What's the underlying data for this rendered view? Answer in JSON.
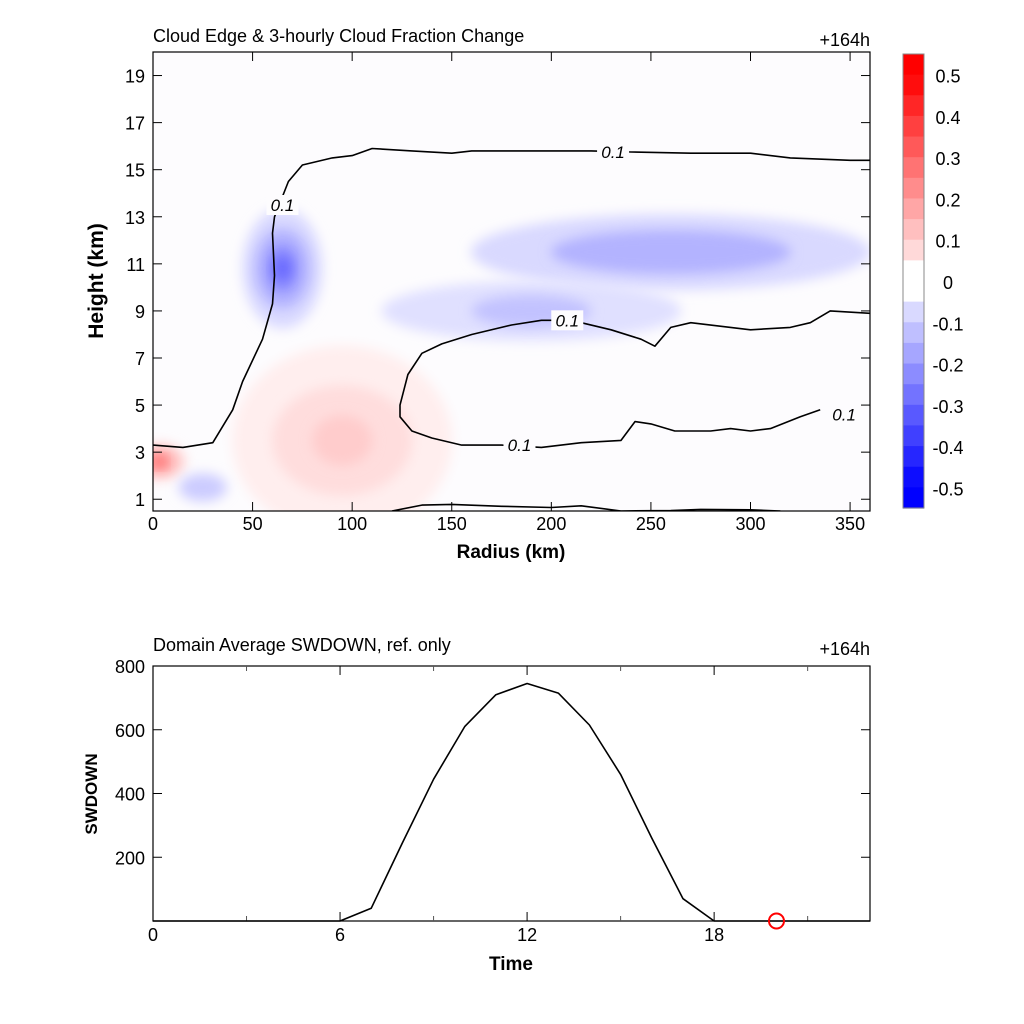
{
  "chart_data": [
    {
      "type": "heatmap",
      "title": "Cloud Edge & 3-hourly Cloud Fraction Change",
      "time_label": "+164h",
      "xlabel": "Radius (km)",
      "ylabel": "Height (km)",
      "xlim": [
        0,
        360
      ],
      "ylim": [
        0.5,
        20
      ],
      "x_ticks": [
        "0",
        "50",
        "100",
        "150",
        "200",
        "250",
        "300",
        "350"
      ],
      "x_tick_values": [
        0,
        50,
        100,
        150,
        200,
        250,
        300,
        350
      ],
      "y_ticks": [
        "1",
        "3",
        "5",
        "7",
        "9",
        "11",
        "13",
        "15",
        "17",
        "19"
      ],
      "y_tick_values": [
        1,
        3,
        5,
        7,
        9,
        11,
        13,
        15,
        17,
        19
      ],
      "colorbar": {
        "labels": [
          "0.5",
          "0.4",
          "0.3",
          "0.2",
          "0.1",
          "0",
          "-0.1",
          "-0.2",
          "-0.3",
          "-0.4",
          "-0.5"
        ],
        "levels": [
          0.5,
          0.4,
          0.3,
          0.2,
          0.1,
          0,
          -0.1,
          -0.2,
          -0.3,
          -0.4,
          -0.5
        ],
        "positive_color": "#ff0000",
        "negative_color": "#0000ff",
        "neutral_color": "#ffffff"
      },
      "shaded_features": [
        {
          "name": "negative-core-upper-left",
          "center": [
            65,
            10.8
          ],
          "peak": -0.3
        },
        {
          "name": "negative-band-upper-right",
          "center": [
            260,
            11.5
          ],
          "peak": -0.15
        },
        {
          "name": "negative-band-mid",
          "center": [
            190,
            9.0
          ],
          "peak": -0.12
        },
        {
          "name": "positive-lower-center",
          "center": [
            95,
            3.5
          ],
          "peak": 0.1
        },
        {
          "name": "positive-near-origin",
          "center": [
            3,
            2.6
          ],
          "peak": 0.3
        },
        {
          "name": "negative-small-lower-left",
          "center": [
            25,
            1.5
          ],
          "peak": -0.1
        }
      ],
      "contours": [
        {
          "level_label": "0.1",
          "points": [
            [
              0,
              3.3
            ],
            [
              15,
              3.2
            ],
            [
              30,
              3.4
            ],
            [
              40,
              4.8
            ],
            [
              45,
              6.0
            ],
            [
              55,
              7.8
            ],
            [
              60,
              9.3
            ],
            [
              61,
              10.5
            ],
            [
              60,
              12.3
            ],
            [
              61,
              13.0
            ],
            [
              68,
              14.5
            ],
            [
              75,
              15.2
            ],
            [
              90,
              15.5
            ],
            [
              100,
              15.6
            ],
            [
              110,
              15.9
            ],
            [
              130,
              15.8
            ],
            [
              150,
              15.7
            ],
            [
              160,
              15.8
            ],
            [
              200,
              15.8
            ],
            [
              220,
              15.8
            ],
            [
              240,
              15.75
            ],
            [
              270,
              15.7
            ],
            [
              300,
              15.7
            ],
            [
              320,
              15.5
            ],
            [
              350,
              15.4
            ],
            [
              360,
              15.4
            ]
          ],
          "label_positions": [
            [
              65,
              13.5
            ],
            [
              231,
              15.75
            ]
          ]
        },
        {
          "level_label": "0.1",
          "points": [
            [
              360,
              8.9
            ],
            [
              340,
              9.0
            ],
            [
              330,
              8.5
            ],
            [
              320,
              8.3
            ],
            [
              300,
              8.2
            ],
            [
              290,
              8.3
            ],
            [
              270,
              8.5
            ],
            [
              260,
              8.3
            ],
            [
              252,
              7.5
            ],
            [
              245,
              7.8
            ],
            [
              230,
              8.2
            ],
            [
              210,
              8.6
            ],
            [
              195,
              8.6
            ],
            [
              180,
              8.4
            ],
            [
              160,
              8.0
            ],
            [
              145,
              7.6
            ],
            [
              135,
              7.2
            ],
            [
              128,
              6.3
            ],
            [
              124,
              5.0
            ],
            [
              124,
              4.5
            ],
            [
              130,
              3.9
            ],
            [
              140,
              3.6
            ],
            [
              155,
              3.3
            ],
            [
              175,
              3.3
            ],
            [
              195,
              3.2
            ],
            [
              215,
              3.4
            ],
            [
              235,
              3.5
            ],
            [
              242,
              4.3
            ],
            [
              250,
              4.2
            ],
            [
              262,
              3.9
            ],
            [
              280,
              3.9
            ],
            [
              290,
              4.0
            ],
            [
              300,
              3.9
            ],
            [
              310,
              4.0
            ],
            [
              325,
              4.5
            ],
            [
              335,
              4.8
            ]
          ],
          "label_positions": [
            [
              208,
              8.6
            ],
            [
              184,
              3.3
            ],
            [
              347,
              4.6
            ]
          ]
        },
        {
          "level_label": "",
          "points": [
            [
              120,
              0.5
            ],
            [
              135,
              0.75
            ],
            [
              150,
              0.78
            ],
            [
              175,
              0.7
            ],
            [
              200,
              0.65
            ],
            [
              215,
              0.72
            ],
            [
              235,
              0.5
            ],
            [
              260,
              0.52
            ],
            [
              275,
              0.57
            ],
            [
              300,
              0.55
            ],
            [
              315,
              0.5
            ]
          ],
          "label_positions": []
        }
      ]
    },
    {
      "type": "line",
      "title": "Domain Average SWDOWN, ref. only",
      "time_label": "+164h",
      "xlabel": "Time",
      "ylabel": "SWDOWN",
      "xlim": [
        0,
        23
      ],
      "ylim": [
        0,
        800
      ],
      "x_ticks": [
        "0",
        "6",
        "12",
        "18"
      ],
      "x_tick_values": [
        0,
        6,
        12,
        18
      ],
      "x_minor_ticks": [
        3,
        9,
        15,
        21
      ],
      "y_ticks": [
        "200",
        "400",
        "600",
        "800"
      ],
      "y_tick_values": [
        200,
        400,
        600,
        800
      ],
      "series": [
        {
          "name": "SWDOWN",
          "color": "#000000",
          "x": [
            0,
            1,
            2,
            3,
            4,
            5,
            6,
            7,
            8,
            9,
            10,
            11,
            12,
            13,
            14,
            15,
            16,
            17,
            18,
            19,
            20,
            21,
            22,
            23
          ],
          "values": [
            0,
            0,
            0,
            0,
            0,
            0,
            0,
            40,
            245,
            445,
            610,
            710,
            745,
            715,
            615,
            460,
            260,
            70,
            0,
            0,
            0,
            0,
            0,
            0
          ]
        }
      ],
      "marker": {
        "x": 20,
        "y": 0,
        "shape": "circle",
        "color": "#ff0000"
      }
    }
  ]
}
